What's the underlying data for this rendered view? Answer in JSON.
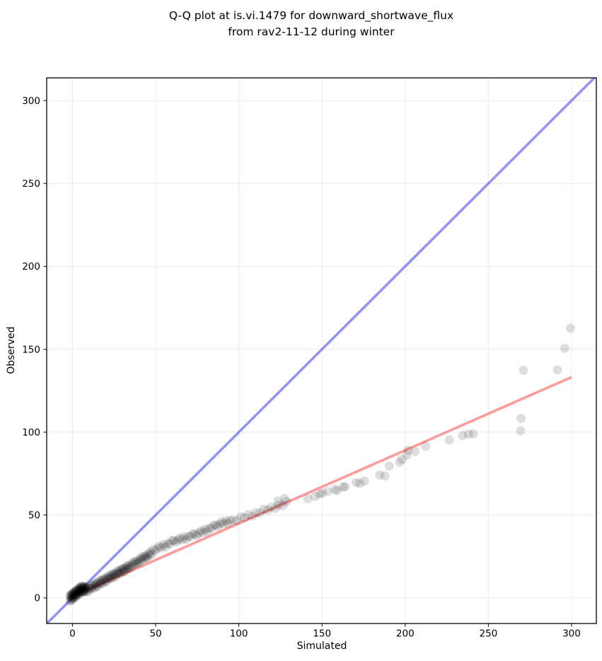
{
  "chart_data": {
    "type": "scatter",
    "title": "Q-Q plot at is.vi.1479 for downward_shortwave_flux from rav2-11-12 during winter",
    "title_line1": "Q-Q plot at is.vi.1479 for downward_shortwave_flux",
    "title_line2": "from rav2-11-12 during winter",
    "xlabel": "Simulated",
    "ylabel": "Observed",
    "xlim": [
      -15.5,
      314.9
    ],
    "ylim": [
      -15.4,
      313.7
    ],
    "xticks": [
      0,
      50,
      100,
      150,
      200,
      250,
      300
    ],
    "yticks": [
      0,
      50,
      100,
      150,
      200,
      250,
      300
    ],
    "grid": true,
    "legend": false,
    "colors": {
      "points": "#000000",
      "identity_line": "#0000e6",
      "fit_line": "#ff2222",
      "grid": "#ececec",
      "frame": "#000000",
      "tick_label": "#000000"
    },
    "points_style": {
      "radius": 6.5,
      "opacity": 0.13
    },
    "identity_line": {
      "opacity": 0.42,
      "width": 3.6,
      "points": [
        [
          -15.5,
          -15.5
        ],
        [
          315,
          315
        ]
      ]
    },
    "fit_line": {
      "opacity": 0.45,
      "width": 3.6,
      "points": [
        [
          -1.5,
          0.2
        ],
        [
          300,
          133.2
        ]
      ]
    },
    "points": [
      [
        -1.5,
        1.6
      ],
      [
        -1.35,
        -1.7
      ],
      [
        -1.2,
        0.6
      ],
      [
        -1.05,
        -1.8
      ],
      [
        -0.9,
        1.5
      ],
      [
        -0.75,
        -0.2
      ],
      [
        -0.6,
        2.5
      ],
      [
        -0.45,
        -0.6
      ],
      [
        -0.3,
        0.8
      ],
      [
        -0.15,
        2.4
      ],
      [
        0,
        -0.8
      ],
      [
        0.15,
        2
      ],
      [
        0.3,
        0.3
      ],
      [
        0.45,
        3
      ],
      [
        0.6,
        1.1
      ],
      [
        0.75,
        1.9
      ],
      [
        0.9,
        3.5
      ],
      [
        1.05,
        0.2
      ],
      [
        1.2,
        2.6
      ],
      [
        1.35,
        0.1
      ],
      [
        1.5,
        3.4
      ],
      [
        1.65,
        1.7
      ],
      [
        1.8,
        4.4
      ],
      [
        1.95,
        1.4
      ],
      [
        2.1,
        2.7
      ],
      [
        2.25,
        4.3
      ],
      [
        2.4,
        1.1
      ],
      [
        2.55,
        3.9
      ],
      [
        2.7,
        2.3
      ],
      [
        2.85,
        4.9
      ],
      [
        3,
        3
      ],
      [
        3.15,
        3.8
      ],
      [
        3.3,
        5.4
      ],
      [
        3.45,
        2.2
      ],
      [
        3.6,
        4.5
      ],
      [
        3.75,
        2
      ],
      [
        3.9,
        5.3
      ],
      [
        4.05,
        3.6
      ],
      [
        4.2,
        6.4
      ],
      [
        4.35,
        3.3
      ],
      [
        4.5,
        4.6
      ],
      [
        4.65,
        6.2
      ],
      [
        4.8,
        3
      ],
      [
        4.95,
        5.9
      ],
      [
        5.1,
        4.2
      ],
      [
        5.25,
        6.8
      ],
      [
        5.4,
        4.9
      ],
      [
        5.55,
        5.7
      ],
      [
        5.7,
        7.4
      ],
      [
        5.85,
        4.1
      ],
      [
        6,
        6.4
      ],
      [
        6.15,
        3.9
      ],
      [
        6.3,
        5.9
      ],
      [
        6.45,
        4.2
      ],
      [
        6.6,
        6.8
      ],
      [
        6.75,
        3.7
      ],
      [
        6.9,
        5
      ],
      [
        7.05,
        6.6
      ],
      [
        7.2,
        3.4
      ],
      [
        7.35,
        6.1
      ],
      [
        7.5,
        4.4
      ],
      [
        7.65,
        7
      ],
      [
        7.8,
        5.1
      ],
      [
        7.95,
        5.9
      ],
      [
        8.4,
        5.9
      ],
      [
        8.85,
        3.9
      ],
      [
        9.3,
        5.6
      ],
      [
        9.75,
        4.1
      ],
      [
        10.2,
        6.6
      ],
      [
        10.65,
        5.7
      ],
      [
        11.1,
        7.6
      ],
      [
        11.55,
        5.7
      ],
      [
        12,
        6.8
      ],
      [
        12.45,
        7.9
      ],
      [
        12.9,
        5.9
      ],
      [
        13.35,
        8
      ],
      [
        13.8,
        8.9
      ],
      [
        14.25,
        6.8
      ],
      [
        14.7,
        8.6
      ],
      [
        15.15,
        7
      ],
      [
        15.6,
        9.6
      ],
      [
        16.05,
        8.6
      ],
      [
        16.5,
        10.6
      ],
      [
        16.95,
        8.6
      ],
      [
        17.4,
        9.8
      ],
      [
        17.85,
        10.9
      ],
      [
        18.3,
        8.9
      ],
      [
        18.75,
        11
      ],
      [
        19.2,
        11.9
      ],
      [
        19.65,
        9.8
      ],
      [
        20.1,
        11.6
      ],
      [
        20.55,
        10
      ],
      [
        21,
        12.6
      ],
      [
        21.45,
        11.6
      ],
      [
        21.9,
        13.6
      ],
      [
        22.35,
        11.6
      ],
      [
        22.8,
        12.7
      ],
      [
        23.25,
        13.9
      ],
      [
        23.7,
        11.8
      ],
      [
        24.15,
        14
      ],
      [
        24.6,
        14.8
      ],
      [
        25.05,
        12.8
      ],
      [
        25.5,
        14.5
      ],
      [
        25.95,
        13
      ],
      [
        26.4,
        15.5
      ],
      [
        26.85,
        14.6
      ],
      [
        27.3,
        16.5
      ],
      [
        27.75,
        14.6
      ],
      [
        28.2,
        15.7
      ],
      [
        28.65,
        16.9
      ],
      [
        29.1,
        14.8
      ],
      [
        29.55,
        17
      ],
      [
        30,
        17.8
      ],
      [
        30.45,
        15.8
      ],
      [
        30.9,
        17.5
      ],
      [
        31.35,
        15.9
      ],
      [
        31.8,
        18.5
      ],
      [
        32.25,
        17.5
      ],
      [
        32.7,
        19.5
      ],
      [
        33.15,
        17.5
      ],
      [
        33.6,
        19.5
      ],
      [
        34.2,
        18.1
      ],
      [
        34.8,
        19.7
      ],
      [
        35.4,
        18.6
      ],
      [
        36,
        21.1
      ],
      [
        36.6,
        20.1
      ],
      [
        37.2,
        22
      ],
      [
        37.8,
        20.6
      ],
      [
        38.4,
        22.3
      ],
      [
        39,
        21
      ],
      [
        39.6,
        22.6
      ],
      [
        40.2,
        21.5
      ],
      [
        40.8,
        24
      ],
      [
        41.4,
        22.9
      ],
      [
        42,
        24.9
      ],
      [
        42.6,
        23.5
      ],
      [
        43.2,
        25.2
      ],
      [
        43.8,
        23.9
      ],
      [
        44.4,
        25.4
      ],
      [
        45,
        24.4
      ],
      [
        45.6,
        26.9
      ],
      [
        46.2,
        25.8
      ],
      [
        46.8,
        27.8
      ],
      [
        47.4,
        26.3
      ],
      [
        48.5,
        29.3
      ],
      [
        49.75,
        28.4
      ],
      [
        51,
        29.9
      ],
      [
        52.25,
        31.3
      ],
      [
        53.5,
        30.3
      ],
      [
        54.75,
        32.2
      ],
      [
        56,
        30.9
      ],
      [
        57.25,
        32.8
      ],
      [
        58.5,
        32.7
      ],
      [
        59.75,
        34.6
      ],
      [
        61,
        34.7
      ],
      [
        62.25,
        33.6
      ],
      [
        63.5,
        35
      ],
      [
        64.75,
        36.2
      ],
      [
        66,
        35.1
      ],
      [
        67.25,
        36.9
      ],
      [
        68.5,
        35.4
      ],
      [
        69.75,
        37.2
      ],
      [
        71,
        37
      ],
      [
        72.25,
        38.7
      ],
      [
        73.5,
        38.7
      ],
      [
        74.75,
        37.6
      ],
      [
        76,
        39.1
      ],
      [
        77.25,
        40.5
      ],
      [
        78.5,
        39.5
      ],
      [
        79.75,
        41.5
      ],
      [
        81,
        40.1
      ],
      [
        82.25,
        42
      ],
      [
        83.5,
        42
      ],
      [
        84.75,
        43.8
      ],
      [
        86,
        44
      ],
      [
        87.25,
        43
      ],
      [
        88.5,
        44.6
      ],
      [
        89.75,
        45.9
      ],
      [
        91,
        44.8
      ],
      [
        92.25,
        46.6
      ],
      [
        93.5,
        45
      ],
      [
        94.75,
        46.8
      ],
      [
        96.5,
        46.9
      ],
      [
        98.8,
        46.6
      ],
      [
        101.1,
        49
      ],
      [
        103.4,
        48.4
      ],
      [
        105.7,
        50.3
      ],
      [
        108,
        49.3
      ],
      [
        110.3,
        51.5
      ],
      [
        112.6,
        51.2
      ],
      [
        114.9,
        53.5
      ],
      [
        117.2,
        53
      ],
      [
        119.5,
        54.8
      ],
      [
        121.8,
        53.9
      ],
      [
        124.1,
        56.1
      ],
      [
        126.4,
        55.7
      ],
      [
        128.7,
        58.1
      ],
      [
        123.5,
        58.5
      ],
      [
        127.5,
        60
      ],
      [
        141.5,
        59.8
      ],
      [
        145.8,
        61.2
      ],
      [
        148.6,
        62.6
      ],
      [
        150.2,
        63.3
      ],
      [
        153.5,
        64.2
      ],
      [
        157.8,
        65.5
      ],
      [
        159.2,
        64.8
      ],
      [
        162.7,
        66.9
      ],
      [
        163.8,
        67.2
      ],
      [
        170.5,
        69.6
      ],
      [
        172.7,
        69.1
      ],
      [
        175.5,
        70.5
      ],
      [
        184.7,
        74.1
      ],
      [
        187.8,
        73.6
      ],
      [
        190.4,
        79.5
      ],
      [
        196.7,
        81.9
      ],
      [
        198.1,
        83.6
      ],
      [
        201,
        86.2
      ],
      [
        201.7,
        89
      ],
      [
        205.9,
        88.3
      ],
      [
        212.3,
        91.5
      ],
      [
        226.5,
        95.3
      ],
      [
        234.5,
        97.9
      ],
      [
        238,
        98.8
      ],
      [
        241,
        99.1
      ],
      [
        269.3,
        100.8
      ],
      [
        269.6,
        108.3
      ],
      [
        271,
        137.3
      ],
      [
        291.5,
        137.6
      ],
      [
        295.9,
        150.6
      ],
      [
        299.4,
        162.7
      ]
    ]
  }
}
